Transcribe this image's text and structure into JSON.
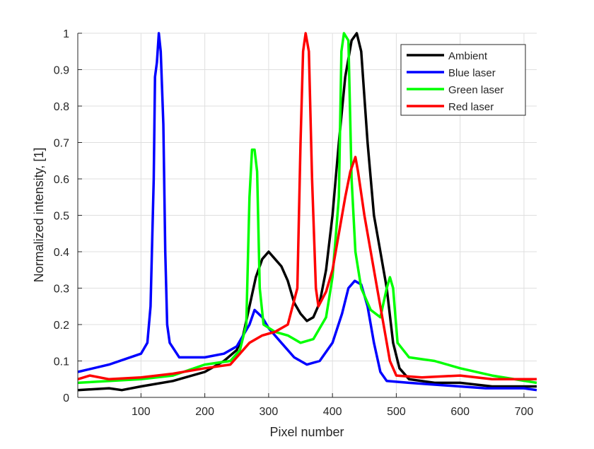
{
  "chart_data": {
    "type": "line",
    "title": "",
    "xlabel": "Pixel number",
    "ylabel": "Normalized intensity, [1]",
    "xlim": [
      1,
      720
    ],
    "ylim": [
      0,
      1
    ],
    "xticks": [
      100,
      200,
      300,
      400,
      500,
      600,
      700
    ],
    "yticks": [
      0,
      0.1,
      0.2,
      0.3,
      0.4,
      0.5,
      0.6,
      0.7,
      0.8,
      0.9,
      1
    ],
    "ytick_labels": [
      "0",
      "0.1",
      "0.2",
      "0.3",
      "0.4",
      "0.5",
      "0.6",
      "0.7",
      "0.8",
      "0.9",
      "1"
    ],
    "grid": true,
    "legend_position": "top-right",
    "series": [
      {
        "name": "Ambient",
        "color": "#000000",
        "x": [
          1,
          50,
          70,
          100,
          150,
          200,
          230,
          250,
          260,
          270,
          280,
          290,
          300,
          310,
          320,
          330,
          340,
          350,
          360,
          370,
          380,
          390,
          400,
          410,
          420,
          430,
          438,
          445,
          455,
          465,
          475,
          485,
          495,
          505,
          520,
          560,
          600,
          650,
          720
        ],
        "y": [
          0.02,
          0.025,
          0.02,
          0.03,
          0.045,
          0.07,
          0.1,
          0.13,
          0.17,
          0.25,
          0.33,
          0.38,
          0.4,
          0.38,
          0.36,
          0.32,
          0.26,
          0.23,
          0.21,
          0.22,
          0.26,
          0.35,
          0.5,
          0.7,
          0.88,
          0.98,
          1.0,
          0.95,
          0.7,
          0.5,
          0.4,
          0.3,
          0.15,
          0.08,
          0.05,
          0.04,
          0.04,
          0.03,
          0.03
        ]
      },
      {
        "name": "Blue laser",
        "color": "#0000ff",
        "x": [
          1,
          50,
          100,
          110,
          115,
          120,
          122,
          125,
          128,
          131,
          135,
          138,
          141,
          145,
          160,
          200,
          230,
          250,
          260,
          270,
          278,
          290,
          300,
          320,
          340,
          360,
          380,
          400,
          415,
          425,
          435,
          445,
          455,
          465,
          475,
          485,
          520,
          560,
          600,
          640,
          700,
          720
        ],
        "y": [
          0.07,
          0.09,
          0.12,
          0.15,
          0.25,
          0.6,
          0.88,
          0.92,
          1.0,
          0.95,
          0.75,
          0.4,
          0.2,
          0.15,
          0.11,
          0.11,
          0.12,
          0.14,
          0.17,
          0.2,
          0.24,
          0.22,
          0.19,
          0.15,
          0.11,
          0.09,
          0.1,
          0.15,
          0.23,
          0.3,
          0.32,
          0.31,
          0.25,
          0.15,
          0.07,
          0.045,
          0.04,
          0.035,
          0.03,
          0.025,
          0.025,
          0.02
        ]
      },
      {
        "name": "Green laser",
        "color": "#00ff00",
        "x": [
          1,
          100,
          150,
          200,
          240,
          255,
          265,
          270,
          274,
          278,
          282,
          286,
          292,
          310,
          330,
          350,
          370,
          390,
          400,
          410,
          414,
          418,
          425,
          430,
          436,
          445,
          460,
          475,
          485,
          490,
          495,
          502,
          520,
          560,
          600,
          650,
          720
        ],
        "y": [
          0.04,
          0.05,
          0.06,
          0.09,
          0.1,
          0.13,
          0.2,
          0.55,
          0.68,
          0.68,
          0.62,
          0.3,
          0.2,
          0.18,
          0.17,
          0.15,
          0.16,
          0.22,
          0.33,
          0.55,
          0.95,
          1.0,
          0.98,
          0.6,
          0.4,
          0.3,
          0.24,
          0.22,
          0.3,
          0.33,
          0.3,
          0.15,
          0.11,
          0.1,
          0.08,
          0.06,
          0.04
        ]
      },
      {
        "name": "Red laser",
        "color": "#ff0000",
        "x": [
          1,
          20,
          50,
          100,
          150,
          200,
          240,
          255,
          270,
          290,
          310,
          330,
          345,
          350,
          354,
          358,
          363,
          368,
          374,
          378,
          390,
          400,
          410,
          420,
          428,
          436,
          440,
          450,
          460,
          470,
          480,
          490,
          500,
          540,
          600,
          650,
          720
        ],
        "y": [
          0.05,
          0.06,
          0.05,
          0.055,
          0.065,
          0.08,
          0.09,
          0.12,
          0.15,
          0.17,
          0.18,
          0.2,
          0.3,
          0.7,
          0.95,
          1.0,
          0.95,
          0.6,
          0.3,
          0.25,
          0.29,
          0.35,
          0.45,
          0.55,
          0.62,
          0.66,
          0.62,
          0.5,
          0.4,
          0.3,
          0.2,
          0.1,
          0.06,
          0.055,
          0.06,
          0.05,
          0.05
        ]
      }
    ]
  }
}
